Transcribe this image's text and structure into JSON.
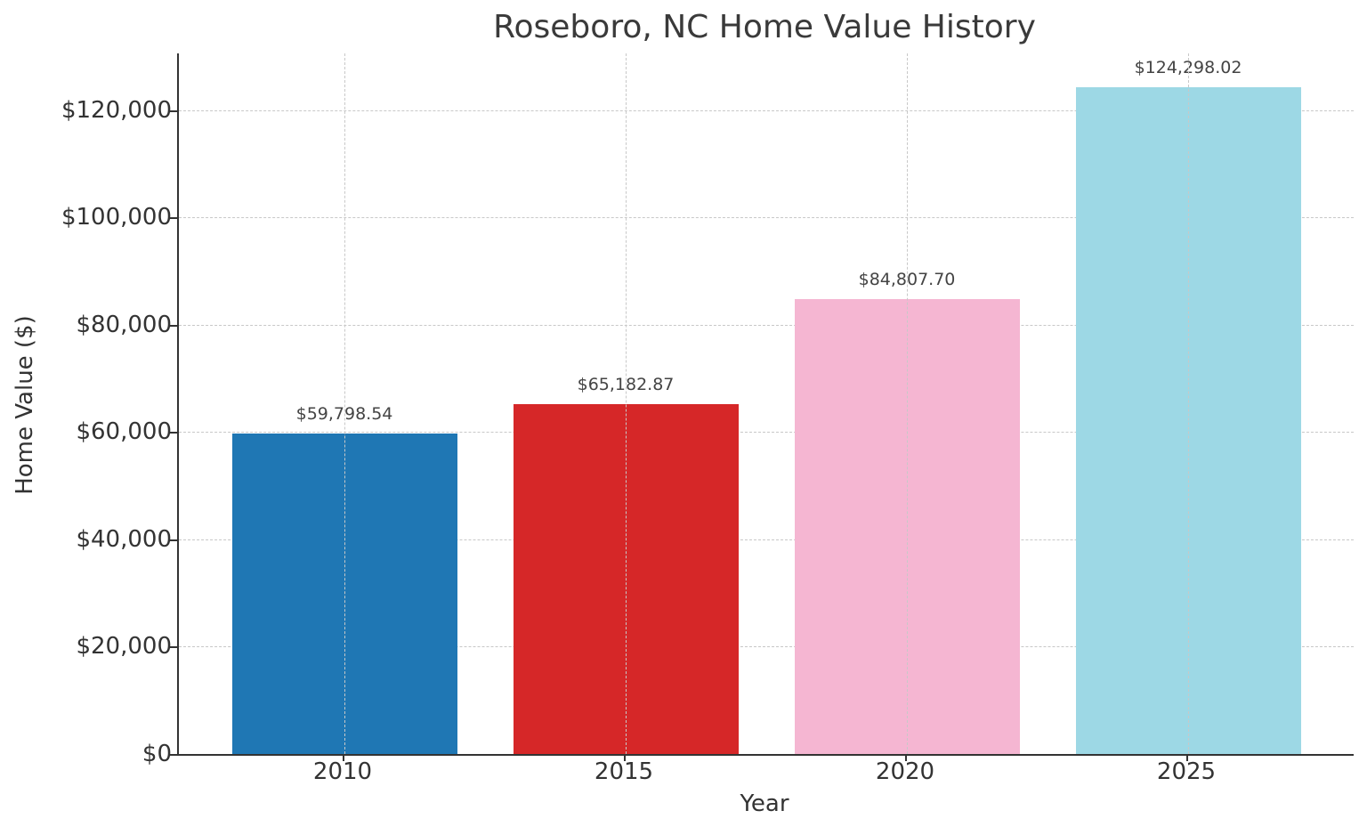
{
  "chart_data": {
    "type": "bar",
    "title": "Roseboro, NC Home Value History",
    "xlabel": "Year",
    "ylabel": "Home Value ($)",
    "categories": [
      "2010",
      "2015",
      "2020",
      "2025"
    ],
    "values": [
      59798.54,
      65182.87,
      84807.7,
      124298.02
    ],
    "value_labels": [
      "$59,798.54",
      "$65,182.87",
      "$84,807.70",
      "$124,298.02"
    ],
    "colors": [
      "#1f77b4",
      "#d62728",
      "#f5b6d2",
      "#9dd8e5"
    ],
    "ylim": [
      0,
      130600
    ],
    "yticks": [
      0,
      20000,
      40000,
      60000,
      80000,
      100000,
      120000
    ],
    "ytick_labels": [
      "$0",
      "$20,000",
      "$40,000",
      "$60,000",
      "$80,000",
      "$100,000",
      "$120,000"
    ],
    "grid": true,
    "grid_style": "dashed",
    "legend": null
  }
}
